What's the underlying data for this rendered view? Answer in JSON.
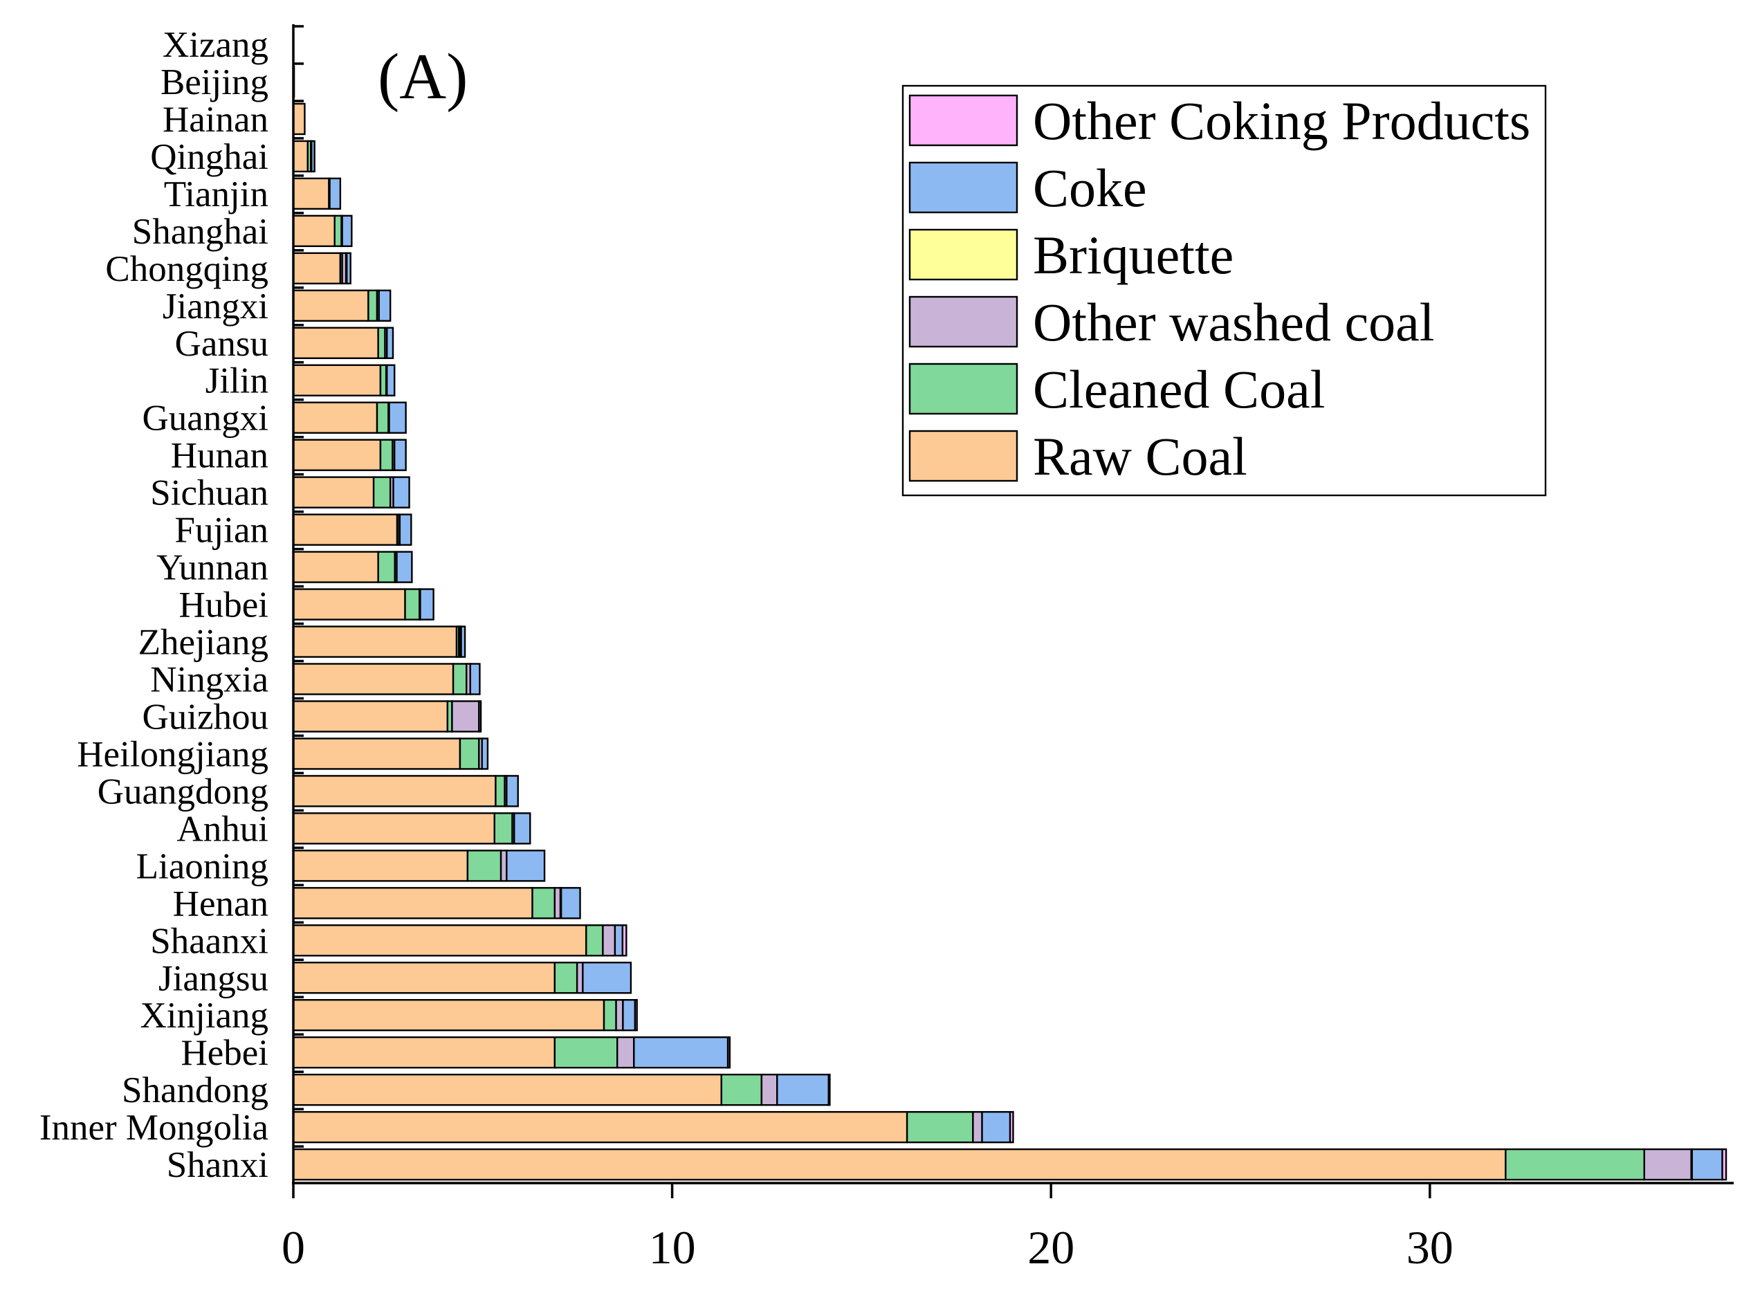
{
  "chart_data": {
    "type": "bar",
    "orientation": "horizontal",
    "stacked": true,
    "panel_label": "(A)",
    "title": "",
    "xlabel": "",
    "ylabel": "",
    "xlim": [
      0,
      38
    ],
    "xticks": [
      "0",
      "10",
      "20",
      "30"
    ],
    "xtick_values": [
      0,
      10,
      20,
      30
    ],
    "grid": false,
    "legend_position": "top-right",
    "categories": [
      "Xizang",
      "Beijing",
      "Hainan",
      "Qinghai",
      "Tianjin",
      "Shanghai",
      "Chongqing",
      "Jiangxi",
      "Gansu",
      "Jilin",
      "Guangxi",
      "Hunan",
      "Sichuan",
      "Fujian",
      "Yunnan",
      "Hubei",
      "Zhejiang",
      "Ningxia",
      "Guizhou",
      "Heilongjiang",
      "Guangdong",
      "Anhui",
      "Liaoning",
      "Henan",
      "Shaanxi",
      "Jiangsu",
      "Xinjiang",
      "Hebei",
      "Shandong",
      "Inner Mongolia",
      "Shanxi"
    ],
    "series": [
      {
        "name": "Raw Coal",
        "color": "#FDC995",
        "values": [
          0,
          0.02,
          0.3,
          0.38,
          0.94,
          1.09,
          1.24,
          1.98,
          2.24,
          2.3,
          2.21,
          2.3,
          2.12,
          2.74,
          2.24,
          2.95,
          4.31,
          4.22,
          4.07,
          4.4,
          5.34,
          5.31,
          4.6,
          6.31,
          7.73,
          6.9,
          8.2,
          6.9,
          11.3,
          16.2,
          32.0
        ]
      },
      {
        "name": "Cleaned Coal",
        "color": "#80D89A",
        "values": [
          0,
          0,
          0,
          0.08,
          0.02,
          0.18,
          0.05,
          0.23,
          0.18,
          0.15,
          0.3,
          0.32,
          0.44,
          0.05,
          0.44,
          0.38,
          0.06,
          0.35,
          0.12,
          0.5,
          0.24,
          0.47,
          0.88,
          0.59,
          0.44,
          0.59,
          0.32,
          1.65,
          1.06,
          1.74,
          3.66
        ]
      },
      {
        "name": "Other washed coal",
        "color": "#C9B4D8",
        "values": [
          0,
          0,
          0,
          0.02,
          0,
          0.02,
          0.1,
          0.05,
          0.05,
          0.02,
          0.02,
          0.05,
          0.08,
          0.02,
          0.05,
          0.02,
          0.04,
          0.1,
          0.71,
          0.08,
          0.05,
          0.05,
          0.15,
          0.15,
          0.32,
          0.15,
          0.18,
          0.44,
          0.41,
          0.24,
          1.24
        ]
      },
      {
        "name": "Briquette",
        "color": "#FFFF99",
        "values": [
          0,
          0,
          0,
          0,
          0,
          0,
          0.02,
          0,
          0,
          0,
          0,
          0,
          0,
          0,
          0,
          0,
          0.02,
          0,
          0,
          0,
          0,
          0,
          0,
          0.02,
          0,
          0,
          0,
          0,
          0,
          0,
          0.02
        ]
      },
      {
        "name": "Coke",
        "color": "#8DB9F2",
        "values": [
          0,
          0,
          0,
          0.08,
          0.28,
          0.25,
          0.1,
          0.3,
          0.16,
          0.2,
          0.44,
          0.3,
          0.42,
          0.3,
          0.4,
          0.35,
          0.1,
          0.25,
          0.05,
          0.15,
          0.3,
          0.42,
          1.0,
          0.5,
          0.2,
          1.27,
          0.32,
          2.48,
          1.36,
          0.74,
          0.8
        ]
      },
      {
        "name": "Other Coking Products",
        "color": "#FFB3FA",
        "values": [
          0,
          0,
          0,
          0,
          0,
          0,
          0,
          0,
          0,
          0,
          0,
          0,
          0,
          0,
          0,
          0,
          0,
          0,
          0,
          0,
          0,
          0,
          0,
          0,
          0.1,
          0,
          0.05,
          0.05,
          0.03,
          0.08,
          0.1
        ]
      }
    ]
  }
}
